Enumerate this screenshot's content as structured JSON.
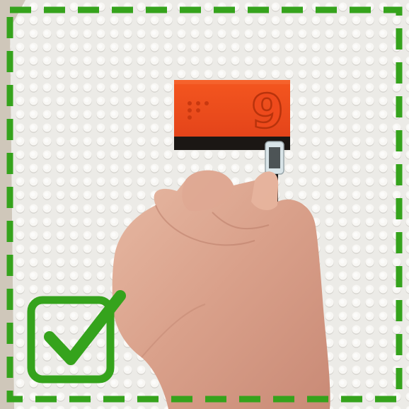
{
  "scene": {
    "brick": {
      "digit": "9",
      "braille_dots": "⠔",
      "color": "#ee4a1c"
    },
    "status": {
      "frame_icon": "dashed-border",
      "check_icon": "checkbox-checked-icon",
      "accent_color": "#35a31c"
    }
  }
}
